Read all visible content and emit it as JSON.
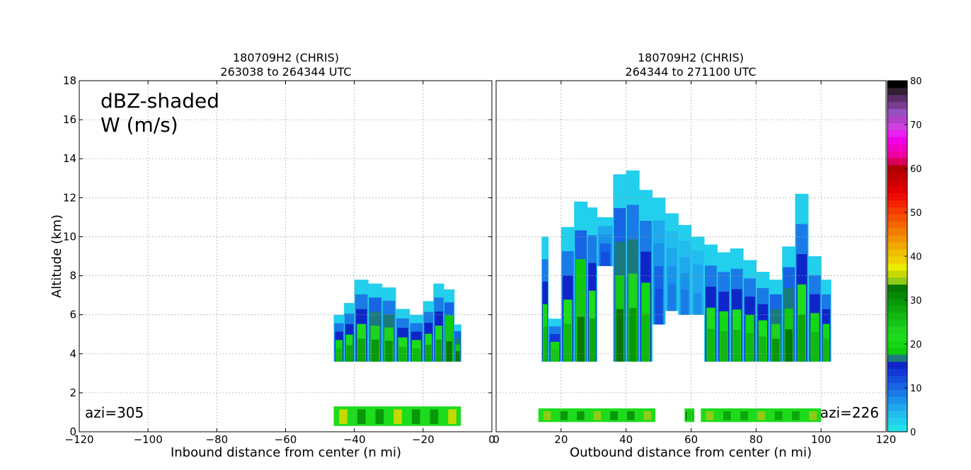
{
  "chart_data": [
    {
      "type": "heatmap",
      "title": [
        "180709H2 (CHRIS)",
        "263038 to 264344 UTC"
      ],
      "xlabel": "Inbound distance from center (n mi)",
      "ylabel": "Altitude (km)",
      "xlim": [
        -120,
        0
      ],
      "ylim": [
        0,
        18
      ],
      "xticks": [
        -120,
        -100,
        -80,
        -60,
        -40,
        -20,
        0
      ],
      "yticks": [
        0,
        2,
        4,
        6,
        8,
        10,
        12,
        14,
        16,
        18
      ],
      "grid": true,
      "annotations": {
        "shaded_label": "dBZ-shaded",
        "contour_label": "W (m/s)",
        "azimuth": "azi=305"
      },
      "columns": [
        {
          "x0": -46,
          "x1": -43,
          "bottom": 3.6,
          "top": 6.0,
          "peak": 26
        },
        {
          "x0": -43,
          "x1": -40,
          "bottom": 3.6,
          "top": 6.6,
          "peak": 28
        },
        {
          "x0": -40,
          "x1": -36,
          "bottom": 3.6,
          "top": 7.8,
          "peak": 28
        },
        {
          "x0": -36,
          "x1": -32,
          "bottom": 3.6,
          "top": 7.6,
          "peak": 30
        },
        {
          "x0": -32,
          "x1": -28,
          "bottom": 3.6,
          "top": 7.4,
          "peak": 29
        },
        {
          "x0": -28,
          "x1": -24,
          "bottom": 3.6,
          "top": 6.3,
          "peak": 27
        },
        {
          "x0": -24,
          "x1": -20,
          "bottom": 3.6,
          "top": 6.0,
          "peak": 27
        },
        {
          "x0": -20,
          "x1": -17,
          "bottom": 3.6,
          "top": 6.7,
          "peak": 28
        },
        {
          "x0": -17,
          "x1": -14,
          "bottom": 3.6,
          "top": 7.6,
          "peak": 28
        },
        {
          "x0": -14,
          "x1": -11,
          "bottom": 3.6,
          "top": 7.3,
          "peak": 33
        },
        {
          "x0": -11,
          "x1": -9,
          "bottom": 3.6,
          "top": 5.5,
          "peak": 32
        }
      ],
      "lower_band": {
        "x0": -46,
        "x1": -9,
        "bottom": 0.3,
        "top": 1.3,
        "peak": 30
      }
    },
    {
      "type": "heatmap",
      "title": [
        "180709H2 (CHRIS)",
        "264344 to 271100 UTC"
      ],
      "xlabel": "Outbound distance from center (n mi)",
      "xlim": [
        0,
        120
      ],
      "ylim": [
        0,
        18
      ],
      "xticks": [
        0,
        20,
        40,
        60,
        80,
        100,
        120
      ],
      "grid": true,
      "annotations": {
        "azimuth": "azi=226"
      },
      "columns": [
        {
          "x0": 14,
          "x1": 16,
          "bottom": 3.6,
          "top": 10.0,
          "peak": 26
        },
        {
          "x0": 16,
          "x1": 20,
          "bottom": 3.6,
          "top": 5.8,
          "peak": 25
        },
        {
          "x0": 20,
          "x1": 24,
          "bottom": 3.6,
          "top": 10.5,
          "peak": 27
        },
        {
          "x0": 24,
          "x1": 28,
          "bottom": 3.6,
          "top": 11.8,
          "peak": 33
        },
        {
          "x0": 28,
          "x1": 31,
          "bottom": 3.6,
          "top": 11.5,
          "peak": 28
        },
        {
          "x0": 31,
          "x1": 36,
          "bottom": 8.5,
          "top": 11.0,
          "peak": 12
        },
        {
          "x0": 36,
          "x1": 40,
          "bottom": 3.6,
          "top": 13.2,
          "peak": 32
        },
        {
          "x0": 40,
          "x1": 44,
          "bottom": 3.6,
          "top": 13.4,
          "peak": 29
        },
        {
          "x0": 44,
          "x1": 48,
          "bottom": 3.6,
          "top": 12.4,
          "peak": 26
        },
        {
          "x0": 48,
          "x1": 52,
          "bottom": 5.5,
          "top": 12.0,
          "peak": 12
        },
        {
          "x0": 52,
          "x1": 56,
          "bottom": 6.2,
          "top": 11.2,
          "peak": 8
        },
        {
          "x0": 56,
          "x1": 60,
          "bottom": 6.0,
          "top": 10.6,
          "peak": 9
        },
        {
          "x0": 60,
          "x1": 64,
          "bottom": 6.0,
          "top": 10.0,
          "peak": 7
        },
        {
          "x0": 64,
          "x1": 68,
          "bottom": 3.6,
          "top": 9.6,
          "peak": 27
        },
        {
          "x0": 68,
          "x1": 72,
          "bottom": 3.6,
          "top": 9.2,
          "peak": 26
        },
        {
          "x0": 72,
          "x1": 76,
          "bottom": 3.6,
          "top": 9.4,
          "peak": 27
        },
        {
          "x0": 76,
          "x1": 80,
          "bottom": 3.6,
          "top": 8.8,
          "peak": 26
        },
        {
          "x0": 80,
          "x1": 84,
          "bottom": 3.6,
          "top": 8.2,
          "peak": 27
        },
        {
          "x0": 84,
          "x1": 88,
          "bottom": 3.6,
          "top": 7.8,
          "peak": 30
        },
        {
          "x0": 88,
          "x1": 92,
          "bottom": 3.6,
          "top": 9.5,
          "peak": 32
        },
        {
          "x0": 92,
          "x1": 96,
          "bottom": 3.6,
          "top": 12.2,
          "peak": 28
        },
        {
          "x0": 96,
          "x1": 100,
          "bottom": 3.6,
          "top": 9.0,
          "peak": 26
        },
        {
          "x0": 100,
          "x1": 103,
          "bottom": 3.6,
          "top": 7.8,
          "peak": 26
        }
      ],
      "lower_bands": [
        {
          "x0": 13,
          "x1": 49,
          "bottom": 0.5,
          "top": 1.2,
          "peak": 29
        },
        {
          "x0": 58,
          "x1": 61,
          "bottom": 0.5,
          "top": 1.2,
          "peak": 26
        },
        {
          "x0": 63,
          "x1": 100,
          "bottom": 0.5,
          "top": 1.2,
          "peak": 28
        }
      ]
    }
  ],
  "colorbar": {
    "ticks": [
      0,
      10,
      20,
      30,
      40,
      50,
      60,
      70,
      80
    ],
    "range": [
      0,
      80
    ],
    "colors": [
      "#22e0e8",
      "#22cfec",
      "#22bcee",
      "#1fa8ee",
      "#1b92ea",
      "#1a7be6",
      "#1764e4",
      "#134ede",
      "#1138d6",
      "#0e26c8",
      "#1a7a7e",
      "#0ecb0e",
      "#12d812",
      "#1cdc1c",
      "#1ed21e",
      "#16c616",
      "#10b810",
      "#0ca80c",
      "#089808",
      "#068806",
      "#067806",
      "#8ecc16",
      "#c8d800",
      "#ecec00",
      "#f0d000",
      "#f0c000",
      "#f0a800",
      "#f29200",
      "#f27c00",
      "#f46600",
      "#f45000",
      "#f43c00",
      "#f42400",
      "#f00c00",
      "#e00000",
      "#d00000",
      "#c00000",
      "#b00000",
      "#d8005a",
      "#f000a0",
      "#f000c8",
      "#f000e8",
      "#e820f0",
      "#d040e0",
      "#b040c8",
      "#9650c0",
      "#7a3c90",
      "#5a2e6a",
      "#302030",
      "#000000"
    ]
  }
}
